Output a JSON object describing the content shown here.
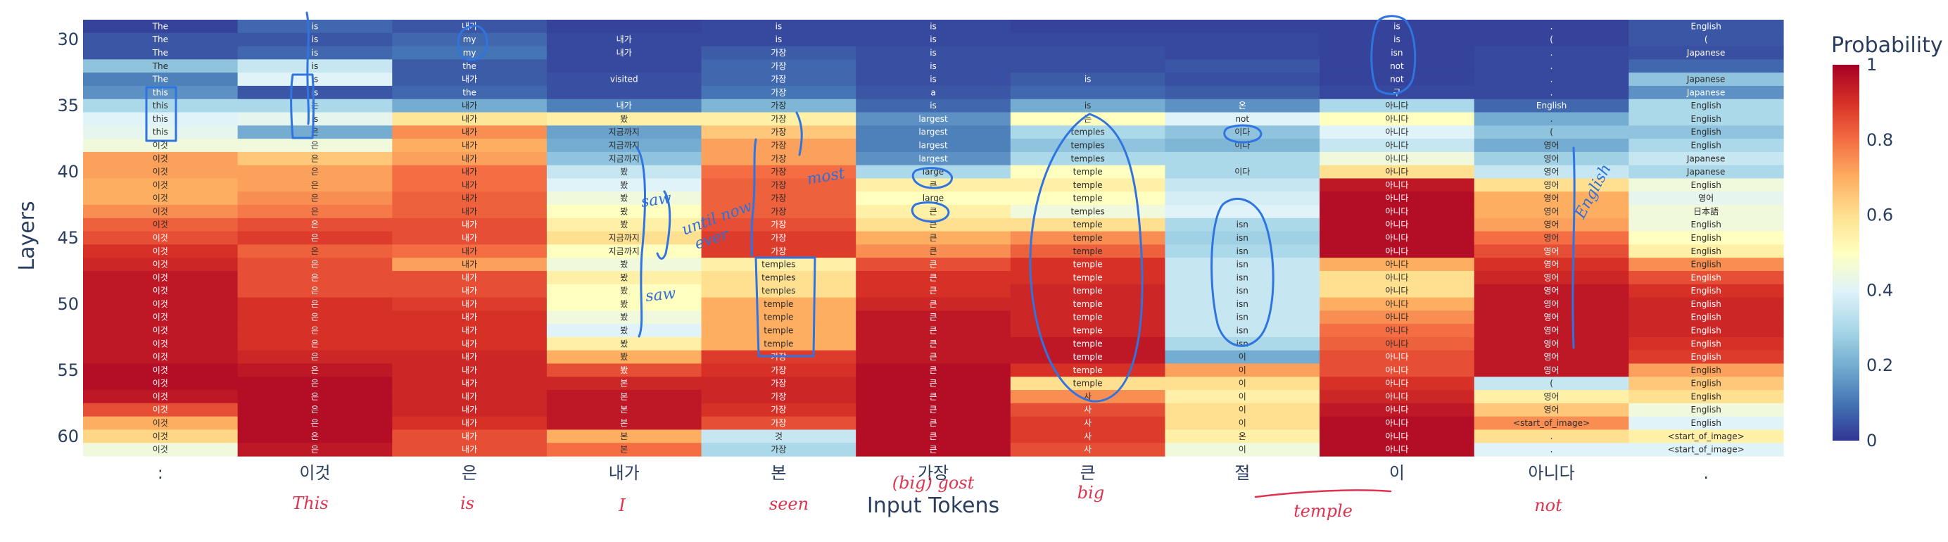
{
  "chart_data": {
    "type": "heatmap",
    "title": "",
    "xlabel": "Input Tokens",
    "ylabel": "Layers",
    "colorbar_title": "Probability",
    "colorscale": "RdYlBu_r",
    "colorbar_ticks": [
      "0",
      "0.2",
      "0.4",
      "0.6",
      "0.8",
      "1"
    ],
    "y_ticks": [
      "30",
      "35",
      "40",
      "45",
      "50",
      "55",
      "60"
    ],
    "x_tokens": [
      ":",
      "이것",
      "은",
      "내가",
      "본",
      "가장",
      "큰",
      "절",
      "이",
      "아니다",
      "."
    ],
    "layers": [
      29,
      30,
      31,
      32,
      33,
      34,
      35,
      36,
      37,
      38,
      39,
      40,
      41,
      42,
      43,
      44,
      45,
      46,
      47,
      48,
      49,
      50,
      51,
      52,
      53,
      54,
      55,
      56,
      57,
      58,
      59,
      60,
      61
    ],
    "columns": [
      {
        "tokens": [
          "The",
          "The",
          "The",
          "The",
          "The",
          "this",
          "this",
          "this",
          "this",
          "이것",
          "이것",
          "이것",
          "이것",
          "이것",
          "이것",
          "이것",
          "이것",
          "이것",
          "이것",
          "이것",
          "이것",
          "이것",
          "이것",
          "이것",
          "이것",
          "이것",
          "이것",
          "이것",
          "이것",
          "이것",
          "이것",
          "이것",
          "이것"
        ],
        "probs": [
          0.02,
          0.05,
          0.05,
          0.25,
          0.12,
          0.15,
          0.3,
          0.4,
          0.42,
          0.45,
          0.72,
          0.72,
          0.7,
          0.7,
          0.75,
          0.82,
          0.85,
          0.9,
          0.92,
          0.95,
          0.95,
          0.95,
          0.95,
          0.95,
          0.95,
          0.95,
          0.97,
          0.97,
          0.95,
          0.85,
          0.7,
          0.62,
          0.45
        ]
      },
      {
        "tokens": [
          "is",
          "is",
          "is",
          "is",
          "is",
          "is",
          "는",
          "is",
          "은",
          "은",
          "은",
          "은",
          "은",
          "은",
          "은",
          "은",
          "은",
          "은",
          "은",
          "은",
          "은",
          "은",
          "은",
          "은",
          "은",
          "은",
          "은",
          "은",
          "은",
          "은",
          "은",
          "은",
          "은"
        ],
        "probs": [
          0.08,
          0.05,
          0.08,
          0.35,
          0.4,
          0.05,
          0.3,
          0.42,
          0.2,
          0.45,
          0.65,
          0.72,
          0.72,
          0.75,
          0.78,
          0.85,
          0.88,
          0.82,
          0.85,
          0.85,
          0.85,
          0.9,
          0.9,
          0.9,
          0.9,
          0.92,
          0.95,
          0.97,
          0.97,
          0.97,
          0.97,
          0.97,
          0.95
        ]
      },
      {
        "tokens": [
          "내가",
          "my",
          "my",
          "the",
          "내가",
          "the",
          "내가",
          "내가",
          "내가",
          "내가",
          "내가",
          "내가",
          "내가",
          "내가",
          "내가",
          "내가",
          "내가",
          "내가",
          "내가",
          "내가",
          "내가",
          "내가",
          "내가",
          "내가",
          "내가",
          "내가",
          "내가",
          "내가",
          "내가",
          "내가",
          "내가",
          "내가",
          "내가"
        ],
        "probs": [
          0.05,
          0.08,
          0.1,
          0.06,
          0.06,
          0.08,
          0.2,
          0.58,
          0.75,
          0.7,
          0.72,
          0.8,
          0.8,
          0.82,
          0.82,
          0.85,
          0.85,
          0.8,
          0.72,
          0.85,
          0.85,
          0.88,
          0.9,
          0.9,
          0.9,
          0.92,
          0.92,
          0.92,
          0.92,
          0.92,
          0.9,
          0.85,
          0.85
        ]
      },
      {
        "tokens": [
          "",
          "내가",
          "내가",
          "",
          "visited",
          "",
          "내가",
          "봤",
          "지금까지",
          "지금까지",
          "지금까지",
          "봤",
          "봤",
          "봤",
          "봤",
          "봤",
          "지금까지",
          "지금까지",
          "봤",
          "봤",
          "봤",
          "봤",
          "봤",
          "봤",
          "봤",
          "봤",
          "봤",
          "본",
          "본",
          "본",
          "본",
          "본",
          "본"
        ],
        "probs": [
          0.02,
          0.03,
          0.03,
          0.03,
          0.04,
          0.04,
          0.12,
          0.55,
          0.18,
          0.2,
          0.25,
          0.35,
          0.4,
          0.45,
          0.5,
          0.55,
          0.6,
          0.5,
          0.45,
          0.55,
          0.5,
          0.5,
          0.45,
          0.4,
          0.55,
          0.7,
          0.85,
          0.92,
          0.95,
          0.95,
          0.95,
          0.7,
          0.8
        ]
      },
      {
        "tokens": [
          "is",
          "is",
          "가장",
          "가장",
          "가장",
          "가장",
          "가장",
          "가장",
          "가장",
          "가장",
          "가장",
          "가장",
          "가장",
          "가장",
          "가장",
          "가장",
          "가장",
          "가장",
          "temples",
          "temples",
          "temples",
          "temple",
          "temple",
          "temple",
          "temple",
          "가장",
          "가장",
          "가장",
          "가장",
          "가장",
          "가장",
          "것",
          "가장"
        ],
        "probs": [
          0.03,
          0.03,
          0.06,
          0.08,
          0.08,
          0.1,
          0.22,
          0.55,
          0.65,
          0.72,
          0.72,
          0.8,
          0.82,
          0.82,
          0.82,
          0.85,
          0.88,
          0.88,
          0.55,
          0.6,
          0.6,
          0.7,
          0.7,
          0.7,
          0.7,
          0.88,
          0.9,
          0.92,
          0.92,
          0.9,
          0.85,
          0.35,
          0.3
        ]
      },
      {
        "tokens": [
          "is",
          "is",
          "is",
          "is",
          "is",
          "a",
          "is",
          "largest",
          "largest",
          "largest",
          "largest",
          "large",
          "큰",
          "large",
          "큰",
          "큰",
          "큰",
          "큰",
          "큰",
          "큰",
          "큰",
          "큰",
          "큰",
          "큰",
          "큰",
          "큰",
          "큰",
          "큰",
          "큰",
          "큰",
          "큰",
          "큰",
          "큰"
        ],
        "probs": [
          0.03,
          0.03,
          0.04,
          0.04,
          0.04,
          0.05,
          0.08,
          0.15,
          0.12,
          0.12,
          0.15,
          0.3,
          0.55,
          0.5,
          0.55,
          0.6,
          0.7,
          0.75,
          0.85,
          0.9,
          0.9,
          0.92,
          0.95,
          0.95,
          0.95,
          0.95,
          0.97,
          0.97,
          0.97,
          0.97,
          0.97,
          0.97,
          0.97
        ]
      },
      {
        "tokens": [
          "",
          "",
          "",
          "",
          "is",
          "",
          "is",
          "는",
          "temples",
          "temples",
          "temples",
          "temple",
          "temple",
          "temple",
          "temples",
          "temple",
          "temple",
          "temple",
          "temple",
          "temple",
          "temple",
          "temple",
          "temple",
          "temple",
          "temple",
          "temple",
          "temple",
          "temple",
          "사",
          "사",
          "사",
          "사",
          "사"
        ],
        "probs": [
          0.02,
          0.03,
          0.04,
          0.04,
          0.06,
          0.08,
          0.2,
          0.5,
          0.3,
          0.25,
          0.3,
          0.5,
          0.55,
          0.5,
          0.45,
          0.6,
          0.75,
          0.82,
          0.9,
          0.9,
          0.92,
          0.92,
          0.92,
          0.92,
          0.95,
          0.95,
          0.9,
          0.6,
          0.75,
          0.85,
          0.88,
          0.88,
          0.85
        ]
      },
      {
        "tokens": [
          "",
          "",
          "",
          "",
          "",
          "",
          "온",
          "not",
          "이다",
          "이다",
          "",
          "이다",
          "",
          "",
          "",
          "isn",
          "isn",
          "isn",
          "isn",
          "isn",
          "isn",
          "isn",
          "isn",
          "isn",
          "isn",
          "이",
          "이",
          "이",
          "이",
          "이",
          "이",
          "온",
          "이"
        ],
        "probs": [
          0.02,
          0.03,
          0.03,
          0.05,
          0.04,
          0.06,
          0.15,
          0.4,
          0.25,
          0.22,
          0.3,
          0.3,
          0.35,
          0.38,
          0.4,
          0.3,
          0.28,
          0.3,
          0.35,
          0.35,
          0.35,
          0.35,
          0.35,
          0.35,
          0.3,
          0.2,
          0.72,
          0.6,
          0.55,
          0.6,
          0.6,
          0.55,
          0.45
        ]
      },
      {
        "tokens": [
          "is",
          "is",
          "isn",
          "not",
          "not",
          "구",
          "아니다",
          "아니다",
          "아니다",
          "아니다",
          "아니다",
          "아니다",
          "아니다",
          "아니다",
          "아니다",
          "아니다",
          "아니다",
          "아니다",
          "아니다",
          "아니다",
          "아니다",
          "아니다",
          "아니다",
          "아니다",
          "아니다",
          "아니다",
          "아니다",
          "아니다",
          "아니다",
          "아니다",
          "아니다",
          "아니다",
          "아니다"
        ],
        "probs": [
          0.02,
          0.02,
          0.02,
          0.02,
          0.02,
          0.03,
          0.3,
          0.5,
          0.4,
          0.35,
          0.45,
          0.6,
          0.95,
          0.97,
          0.97,
          0.97,
          0.97,
          0.97,
          0.7,
          0.6,
          0.6,
          0.7,
          0.75,
          0.8,
          0.82,
          0.85,
          0.85,
          0.9,
          0.92,
          0.95,
          0.97,
          0.97,
          0.97
        ]
      },
      {
        "tokens": [
          ".",
          "(",
          ".",
          ".",
          ".",
          ".",
          "English",
          ".",
          "(",
          "영어",
          "영어",
          "영어",
          "영어",
          "영어",
          "영어",
          "영어",
          "영어",
          "영어",
          "영어",
          "영어",
          "영어",
          "영어",
          "영어",
          "영어",
          "영어",
          "영어",
          "영어",
          "(",
          "영어",
          "영어",
          "<start_of_image>",
          ".",
          "."
        ],
        "probs": [
          0.02,
          0.02,
          0.03,
          0.03,
          0.03,
          0.03,
          0.08,
          0.2,
          0.25,
          0.2,
          0.28,
          0.35,
          0.6,
          0.7,
          0.7,
          0.72,
          0.8,
          0.85,
          0.9,
          0.92,
          0.95,
          0.95,
          0.95,
          0.95,
          0.95,
          0.95,
          0.95,
          0.35,
          0.55,
          0.65,
          0.75,
          0.6,
          0.4
        ]
      },
      {
        "tokens": [
          "English",
          "(",
          "Japanese",
          "",
          "Japanese",
          "Japanese",
          "English",
          "English",
          "English",
          "English",
          "Japanese",
          "Japanese",
          "English",
          "영어",
          "日本語",
          "English",
          "English",
          "English",
          "English",
          "English",
          "English",
          "English",
          "English",
          "English",
          "English",
          "English",
          "English",
          "English",
          "English",
          "English",
          "English",
          "<start_of_image>",
          "<start_of_image>"
        ],
        "probs": [
          0.05,
          0.05,
          0.04,
          0.08,
          0.25,
          0.15,
          0.3,
          0.3,
          0.25,
          0.3,
          0.35,
          0.3,
          0.45,
          0.42,
          0.45,
          0.45,
          0.5,
          0.55,
          0.75,
          0.85,
          0.9,
          0.92,
          0.92,
          0.92,
          0.9,
          0.88,
          0.72,
          0.65,
          0.6,
          0.45,
          0.4,
          0.55,
          0.4
        ]
      }
    ],
    "handwritten_notes": {
      "red_glosses": [
        "This",
        "is",
        "I",
        "seen",
        "(big) gost",
        "big",
        "temple",
        "not"
      ],
      "blue_notes": [
        "saw",
        "until now",
        "ever",
        "saw",
        "most",
        "English"
      ]
    }
  }
}
